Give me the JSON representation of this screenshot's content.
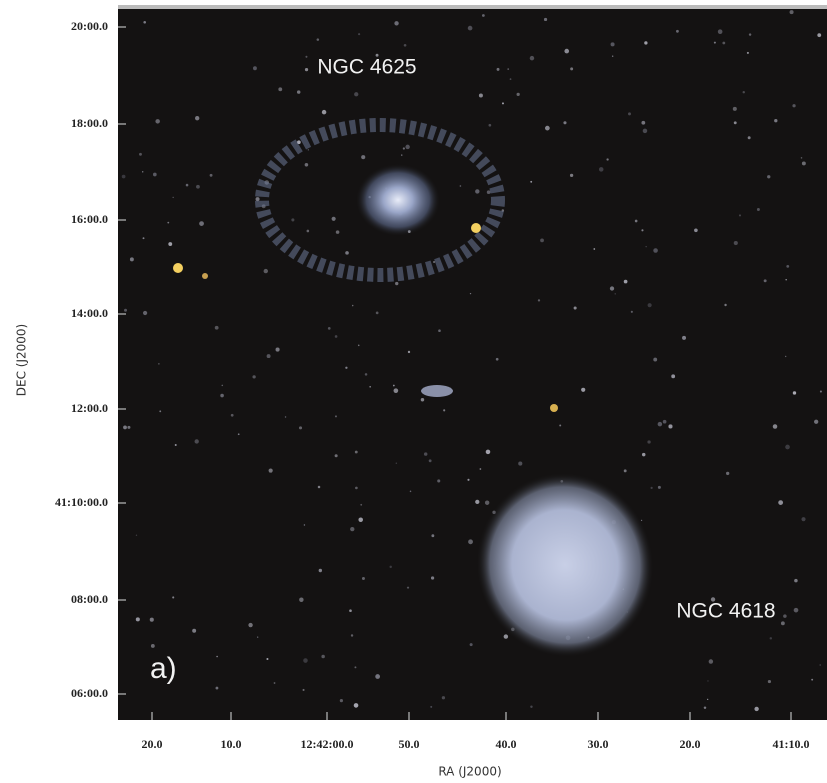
{
  "figure": {
    "panel_label": "a)",
    "annotations": [
      "NGC 4625",
      "NGC 4618"
    ],
    "x_axis": {
      "label": "RA (J2000)",
      "ticks": [
        "20.0",
        "10.0",
        "12:42:00.0",
        "50.0",
        "40.0",
        "30.0",
        "20.0",
        "41:10.0"
      ]
    },
    "y_axis": {
      "label": "DEC (J2000)",
      "ticks": [
        "20:00.0",
        "18:00.0",
        "16:00.0",
        "14:00.0",
        "12:00.0",
        "41:10:00.0",
        "08:00.0",
        "06:00.0"
      ]
    }
  }
}
